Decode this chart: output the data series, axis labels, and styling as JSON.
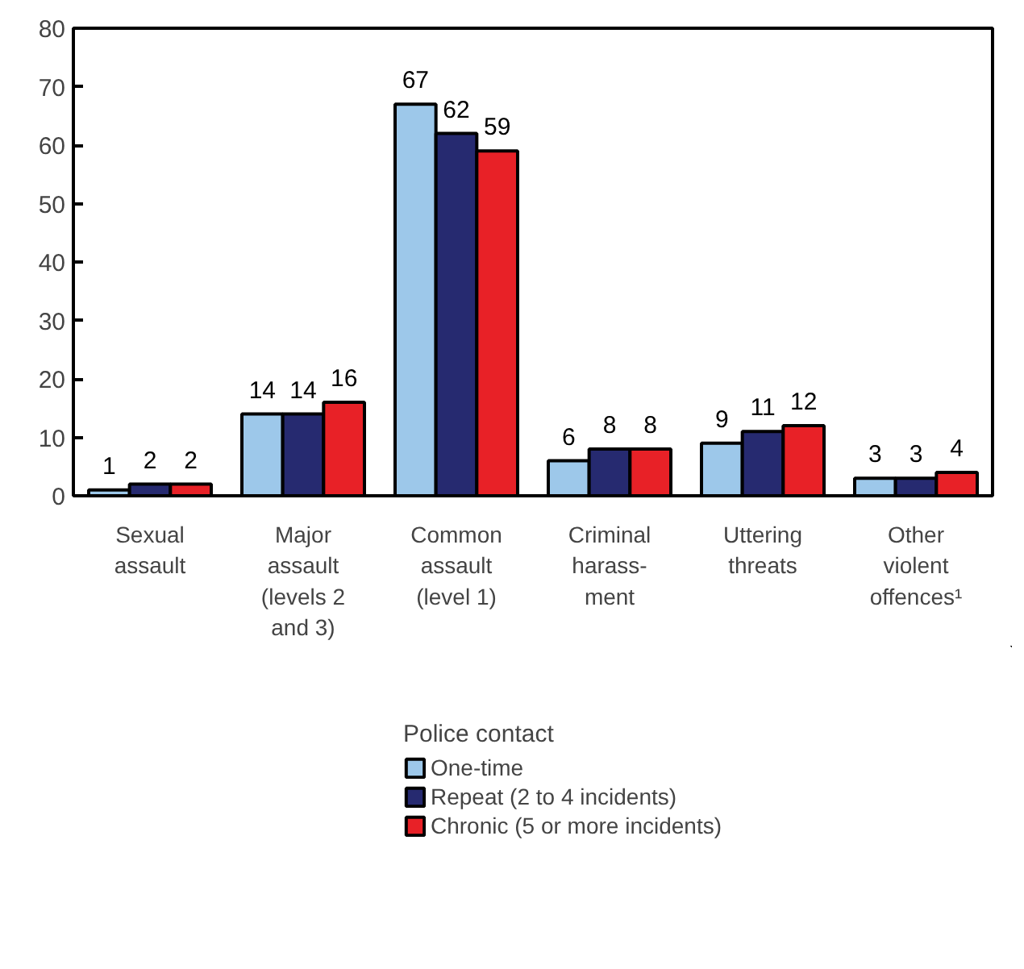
{
  "chart_data": {
    "type": "bar",
    "categories": [
      "Sexual\nassault",
      "Major\nassault\n(levels 2\nand 3)",
      "Common\nassault\n(level 1)",
      "Criminal\nharass-\nment",
      "Uttering\nthreats",
      "Other\nviolent\noffences¹"
    ],
    "series": [
      {
        "name": "One-time",
        "color": "#9dc8ea",
        "values": [
          1,
          14,
          67,
          6,
          9,
          3
        ]
      },
      {
        "name": "Repeat (2 to 4 incidents)",
        "color": "#262a70",
        "values": [
          2,
          14,
          62,
          8,
          11,
          3
        ]
      },
      {
        "name": "Chronic (5 or more incidents)",
        "color": "#e82127",
        "values": [
          2,
          16,
          59,
          8,
          12,
          4
        ]
      }
    ],
    "legend_title": "Police contact",
    "ylim": [
      0,
      80
    ],
    "yticks": [
      0,
      10,
      20,
      30,
      40,
      50,
      60,
      70,
      80
    ],
    "data_labels": true,
    "grid": false,
    "legend": "bottom"
  }
}
